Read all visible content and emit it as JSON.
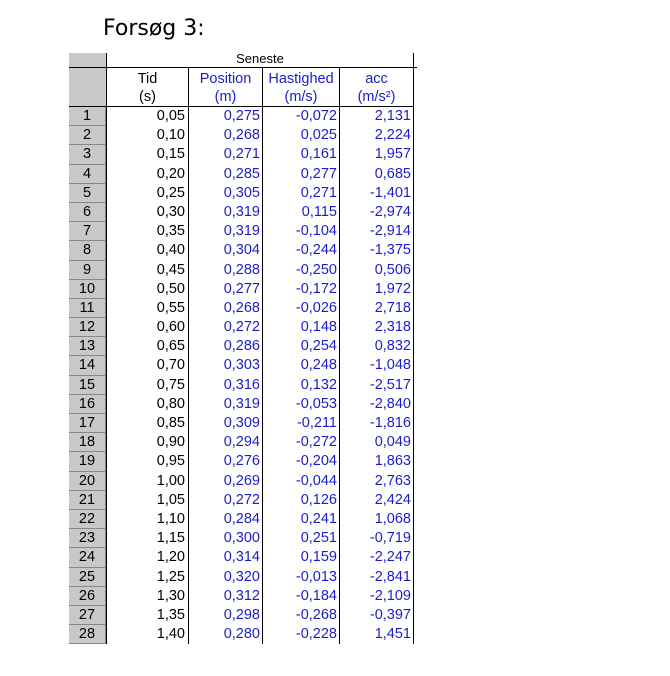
{
  "heading": "Forsøg 3:",
  "table": {
    "group_title": "Seneste",
    "columns": [
      {
        "name": "Tid",
        "unit": "(s)"
      },
      {
        "name": "Position",
        "unit": "(m)"
      },
      {
        "name": "Hastighed",
        "unit": "(m/s)"
      },
      {
        "name": "acc",
        "unit": "(m/s²)"
      }
    ],
    "rows": [
      [
        "1",
        "0,05",
        "0,275",
        "-0,072",
        "2,131"
      ],
      [
        "2",
        "0,10",
        "0,268",
        "0,025",
        "2,224"
      ],
      [
        "3",
        "0,15",
        "0,271",
        "0,161",
        "1,957"
      ],
      [
        "4",
        "0,20",
        "0,285",
        "0,277",
        "0,685"
      ],
      [
        "5",
        "0,25",
        "0,305",
        "0,271",
        "-1,401"
      ],
      [
        "6",
        "0,30",
        "0,319",
        "0,115",
        "-2,974"
      ],
      [
        "7",
        "0,35",
        "0,319",
        "-0,104",
        "-2,914"
      ],
      [
        "8",
        "0,40",
        "0,304",
        "-0,244",
        "-1,375"
      ],
      [
        "9",
        "0,45",
        "0,288",
        "-0,250",
        "0,506"
      ],
      [
        "10",
        "0,50",
        "0,277",
        "-0,172",
        "1,972"
      ],
      [
        "11",
        "0,55",
        "0,268",
        "-0,026",
        "2,718"
      ],
      [
        "12",
        "0,60",
        "0,272",
        "0,148",
        "2,318"
      ],
      [
        "13",
        "0,65",
        "0,286",
        "0,254",
        "0,832"
      ],
      [
        "14",
        "0,70",
        "0,303",
        "0,248",
        "-1,048"
      ],
      [
        "15",
        "0,75",
        "0,316",
        "0,132",
        "-2,517"
      ],
      [
        "16",
        "0,80",
        "0,319",
        "-0,053",
        "-2,840"
      ],
      [
        "17",
        "0,85",
        "0,309",
        "-0,211",
        "-1,816"
      ],
      [
        "18",
        "0,90",
        "0,294",
        "-0,272",
        "0,049"
      ],
      [
        "19",
        "0,95",
        "0,276",
        "-0,204",
        "1,863"
      ],
      [
        "20",
        "1,00",
        "0,269",
        "-0,044",
        "2,763"
      ],
      [
        "21",
        "1,05",
        "0,272",
        "0,126",
        "2,424"
      ],
      [
        "22",
        "1,10",
        "0,284",
        "0,241",
        "1,068"
      ],
      [
        "23",
        "1,15",
        "0,300",
        "0,251",
        "-0,719"
      ],
      [
        "24",
        "1,20",
        "0,314",
        "0,159",
        "-2,247"
      ],
      [
        "25",
        "1,25",
        "0,320",
        "-0,013",
        "-2,841"
      ],
      [
        "26",
        "1,30",
        "0,312",
        "-0,184",
        "-2,109"
      ],
      [
        "27",
        "1,35",
        "0,298",
        "-0,268",
        "-0,397"
      ],
      [
        "28",
        "1,40",
        "0,280",
        "-0,228",
        "1,451"
      ]
    ]
  },
  "colors": {
    "measured_text": "#1c1ccc",
    "index_background": "#c8c8c8"
  }
}
